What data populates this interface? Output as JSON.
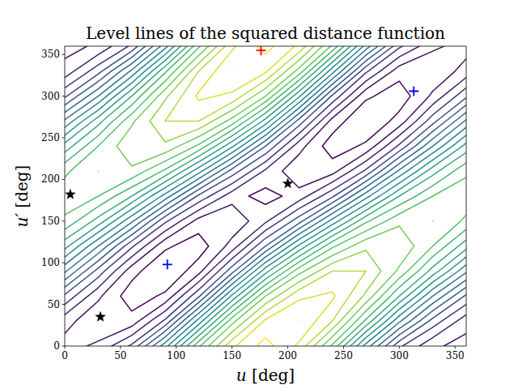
{
  "chart_data": {
    "type": "contour",
    "title": "Level lines of the squared distance function",
    "x_label": "u [deg]",
    "y_label": "u′ [deg]",
    "xlim": [
      0,
      360
    ],
    "ylim": [
      0,
      360
    ],
    "xticks": [
      0,
      50,
      100,
      150,
      200,
      250,
      300,
      350
    ],
    "yticks": [
      0,
      50,
      100,
      150,
      200,
      250,
      300,
      350
    ],
    "x": [
      0,
      30,
      60,
      90,
      120,
      150,
      180,
      210,
      240,
      270,
      300,
      330,
      360
    ],
    "y": [
      0,
      30,
      60,
      90,
      120,
      150,
      180,
      210,
      240,
      270,
      300,
      330,
      360
    ],
    "z": [
      [
        0.08,
        0.11,
        0.21,
        0.43,
        0.69,
        0.89,
        0.97,
        0.89,
        0.69,
        0.43,
        0.21,
        0.11,
        0.08
      ],
      [
        0.12,
        0.06,
        0.07,
        0.21,
        0.47,
        0.73,
        0.91,
        0.95,
        0.85,
        0.64,
        0.41,
        0.23,
        0.12
      ],
      [
        0.24,
        0.11,
        0.02,
        0.06,
        0.24,
        0.51,
        0.75,
        0.89,
        0.91,
        0.79,
        0.6,
        0.4,
        0.24
      ],
      [
        0.41,
        0.23,
        0.07,
        0.0,
        0.08,
        0.28,
        0.53,
        0.73,
        0.85,
        0.85,
        0.74,
        0.58,
        0.41
      ],
      [
        0.57,
        0.4,
        0.21,
        0.06,
        0.02,
        0.12,
        0.3,
        0.51,
        0.69,
        0.79,
        0.79,
        0.7,
        0.57
      ],
      [
        0.69,
        0.58,
        0.41,
        0.21,
        0.08,
        0.06,
        0.14,
        0.28,
        0.47,
        0.64,
        0.74,
        0.75,
        0.69
      ],
      [
        0.73,
        0.7,
        0.6,
        0.43,
        0.24,
        0.12,
        0.08,
        0.12,
        0.24,
        0.43,
        0.6,
        0.7,
        0.73
      ],
      [
        0.69,
        0.75,
        0.74,
        0.64,
        0.47,
        0.28,
        0.14,
        0.06,
        0.08,
        0.21,
        0.41,
        0.58,
        0.69
      ],
      [
        0.57,
        0.7,
        0.79,
        0.79,
        0.69,
        0.51,
        0.3,
        0.12,
        0.02,
        0.06,
        0.21,
        0.4,
        0.57
      ],
      [
        0.41,
        0.58,
        0.74,
        0.85,
        0.85,
        0.73,
        0.53,
        0.28,
        0.08,
        0.0,
        0.07,
        0.23,
        0.41
      ],
      [
        0.24,
        0.4,
        0.6,
        0.79,
        0.91,
        0.89,
        0.75,
        0.51,
        0.24,
        0.06,
        0.02,
        0.11,
        0.24
      ],
      [
        0.12,
        0.23,
        0.41,
        0.64,
        0.85,
        0.95,
        0.91,
        0.73,
        0.47,
        0.21,
        0.07,
        0.06,
        0.12
      ],
      [
        0.08,
        0.11,
        0.21,
        0.43,
        0.69,
        0.89,
        0.97,
        0.89,
        0.69,
        0.43,
        0.21,
        0.11,
        0.08
      ]
    ],
    "levels": [
      0.05,
      0.1,
      0.15,
      0.2,
      0.25,
      0.3,
      0.35,
      0.4,
      0.45,
      0.5,
      0.55,
      0.6,
      0.65,
      0.7,
      0.75,
      0.8,
      0.85,
      0.9,
      0.95
    ],
    "series": [
      {
        "color": "#0000ff",
        "marker": "plus",
        "x": [
          92,
          313
        ],
        "values": [
          98,
          306
        ]
      },
      {
        "color": "#ff0000",
        "marker": "plus",
        "x": [
          176
        ],
        "values": [
          355
        ]
      },
      {
        "color": "#000000",
        "marker": "star",
        "x": [
          5,
          32,
          200
        ],
        "values": [
          182,
          35,
          195
        ]
      }
    ]
  }
}
